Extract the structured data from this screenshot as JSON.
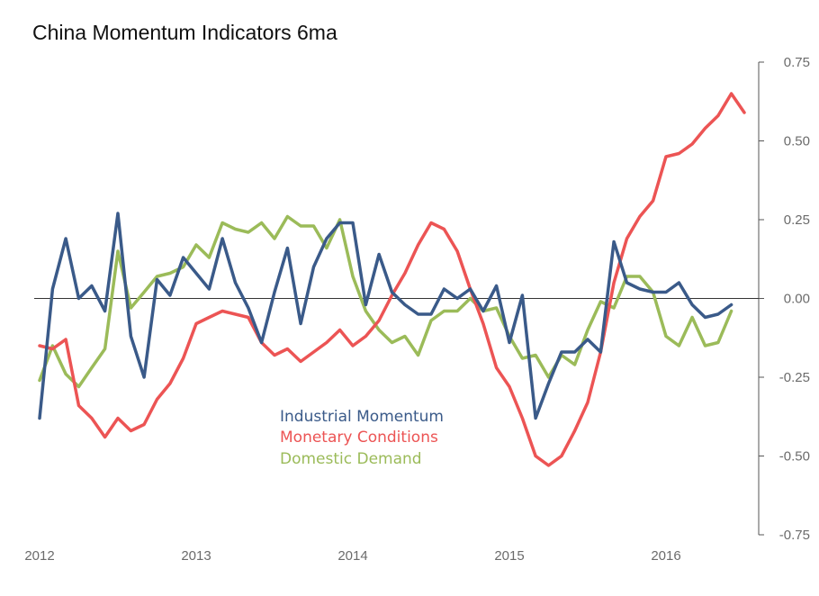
{
  "chart_data": {
    "type": "line",
    "title": "China Momentum Indicators 6ma",
    "xlabel": "",
    "ylabel": "",
    "x_tick_labels": [
      "2012",
      "2013",
      "2014",
      "2015",
      "2016"
    ],
    "y_tick_labels": [
      "0.75",
      "0.50",
      "0.25",
      "0.00",
      "-0.25",
      "-0.50",
      "-0.75"
    ],
    "y_ticks": [
      0.75,
      0.5,
      0.25,
      0.0,
      -0.25,
      -0.5,
      -0.75
    ],
    "ylim": [
      -0.75,
      0.75
    ],
    "xlim": [
      2012,
      2016.75
    ],
    "grid": false,
    "zero_line": true,
    "y_axis_side": "right",
    "legend_position": "center",
    "x": [
      2012.0,
      2012.083,
      2012.167,
      2012.25,
      2012.333,
      2012.417,
      2012.5,
      2012.583,
      2012.667,
      2012.75,
      2012.833,
      2012.917,
      2013.0,
      2013.083,
      2013.167,
      2013.25,
      2013.333,
      2013.417,
      2013.5,
      2013.583,
      2013.667,
      2013.75,
      2013.833,
      2013.917,
      2014.0,
      2014.083,
      2014.167,
      2014.25,
      2014.333,
      2014.417,
      2014.5,
      2014.583,
      2014.667,
      2014.75,
      2014.833,
      2014.917,
      2015.0,
      2015.083,
      2015.167,
      2015.25,
      2015.333,
      2015.417,
      2015.5,
      2015.583,
      2015.667,
      2015.75,
      2015.833,
      2015.917,
      2016.0,
      2016.083,
      2016.167,
      2016.25,
      2016.333,
      2016.417,
      2016.5
    ],
    "series": [
      {
        "name": "Industrial Momentum",
        "color": "#3a5a89",
        "values": [
          -0.38,
          0.03,
          0.19,
          0.0,
          0.04,
          -0.04,
          0.27,
          -0.12,
          -0.25,
          0.06,
          0.01,
          0.13,
          0.08,
          0.03,
          0.19,
          0.05,
          -0.03,
          -0.14,
          0.02,
          0.16,
          -0.08,
          0.1,
          0.19,
          0.24,
          0.24,
          -0.02,
          0.14,
          0.02,
          -0.02,
          -0.05,
          -0.05,
          0.03,
          0.0,
          0.03,
          -0.04,
          0.04,
          -0.14,
          0.01,
          -0.38,
          -0.27,
          -0.17,
          -0.17,
          -0.13,
          -0.17,
          0.18,
          0.05,
          0.03,
          0.02,
          0.02,
          0.05,
          -0.02,
          -0.06,
          -0.05,
          -0.02,
          null
        ],
        "x": [
          2012.0,
          2012.083,
          2012.167,
          2012.25,
          2012.333,
          2012.417,
          2012.5,
          2012.583,
          2012.667,
          2012.75,
          2012.833,
          2012.917,
          2013.0,
          2013.083,
          2013.167,
          2013.25,
          2013.333,
          2013.417,
          2013.5,
          2013.583,
          2013.667,
          2013.75,
          2013.833,
          2013.917,
          2014.0,
          2014.083,
          2014.167,
          2014.25,
          2014.333,
          2014.417,
          2014.5,
          2014.583,
          2014.667,
          2014.75,
          2014.833,
          2014.917,
          2015.0,
          2015.083,
          2015.167,
          2015.25,
          2015.333,
          2015.417,
          2015.5,
          2015.583,
          2015.667,
          2015.75,
          2015.833,
          2015.917,
          2016.0,
          2016.083,
          2016.167,
          2016.25,
          2016.333,
          2016.417,
          2016.5
        ]
      },
      {
        "name": "Monetary Conditions",
        "color": "#ec5454",
        "values": [
          -0.15,
          -0.16,
          -0.13,
          -0.34,
          -0.38,
          -0.44,
          -0.38,
          -0.42,
          -0.4,
          -0.32,
          -0.27,
          -0.19,
          -0.08,
          -0.06,
          -0.04,
          -0.05,
          -0.06,
          -0.14,
          -0.18,
          -0.16,
          -0.2,
          -0.17,
          -0.14,
          -0.1,
          -0.15,
          -0.12,
          -0.07,
          0.01,
          0.08,
          0.17,
          0.24,
          0.22,
          0.15,
          0.03,
          -0.08,
          -0.22,
          -0.28,
          -0.38,
          -0.5,
          -0.53,
          -0.5,
          -0.42,
          -0.33,
          -0.17,
          0.05,
          0.19,
          0.26,
          0.31,
          0.45,
          0.46,
          0.49,
          0.54,
          0.58,
          0.65,
          0.59
        ],
        "x": [
          2012.0,
          2012.083,
          2012.167,
          2012.25,
          2012.333,
          2012.417,
          2012.5,
          2012.583,
          2012.667,
          2012.75,
          2012.833,
          2012.917,
          2013.0,
          2013.083,
          2013.167,
          2013.25,
          2013.333,
          2013.417,
          2013.5,
          2013.583,
          2013.667,
          2013.75,
          2013.833,
          2013.917,
          2014.0,
          2014.083,
          2014.167,
          2014.25,
          2014.333,
          2014.417,
          2014.5,
          2014.583,
          2014.667,
          2014.75,
          2014.833,
          2014.917,
          2015.0,
          2015.083,
          2015.167,
          2015.25,
          2015.333,
          2015.417,
          2015.5,
          2015.583,
          2015.667,
          2015.75,
          2015.833,
          2015.917,
          2016.0,
          2016.083,
          2016.167,
          2016.25,
          2016.333,
          2016.417,
          2016.5
        ]
      },
      {
        "name": "Domestic Demand",
        "color": "#9bbb59",
        "values": [
          -0.26,
          -0.15,
          -0.24,
          -0.28,
          -0.22,
          -0.16,
          0.15,
          -0.03,
          0.02,
          0.07,
          0.08,
          0.1,
          0.17,
          0.13,
          0.24,
          0.22,
          0.21,
          0.24,
          0.19,
          0.26,
          0.23,
          0.23,
          0.16,
          0.25,
          0.07,
          -0.04,
          -0.1,
          -0.14,
          -0.12,
          -0.18,
          -0.07,
          -0.04,
          -0.04,
          0.0,
          -0.04,
          -0.03,
          -0.12,
          -0.19,
          -0.18,
          -0.25,
          -0.18,
          -0.21,
          -0.1,
          -0.01,
          -0.03,
          0.07,
          0.07,
          0.02,
          -0.12,
          -0.15,
          -0.06,
          -0.15,
          -0.14,
          -0.04,
          null
        ],
        "x": [
          2012.0,
          2012.083,
          2012.167,
          2012.25,
          2012.333,
          2012.417,
          2012.5,
          2012.583,
          2012.667,
          2012.75,
          2012.833,
          2012.917,
          2013.0,
          2013.083,
          2013.167,
          2013.25,
          2013.333,
          2013.417,
          2013.5,
          2013.583,
          2013.667,
          2013.75,
          2013.833,
          2013.917,
          2014.0,
          2014.083,
          2014.167,
          2014.25,
          2014.333,
          2014.417,
          2014.5,
          2014.583,
          2014.667,
          2014.75,
          2014.833,
          2014.917,
          2015.0,
          2015.083,
          2015.167,
          2015.25,
          2015.333,
          2015.417,
          2015.5,
          2015.583,
          2015.667,
          2015.75,
          2015.833,
          2015.917,
          2016.0,
          2016.083,
          2016.167,
          2016.25,
          2016.333,
          2016.417,
          2016.5
        ]
      }
    ]
  }
}
